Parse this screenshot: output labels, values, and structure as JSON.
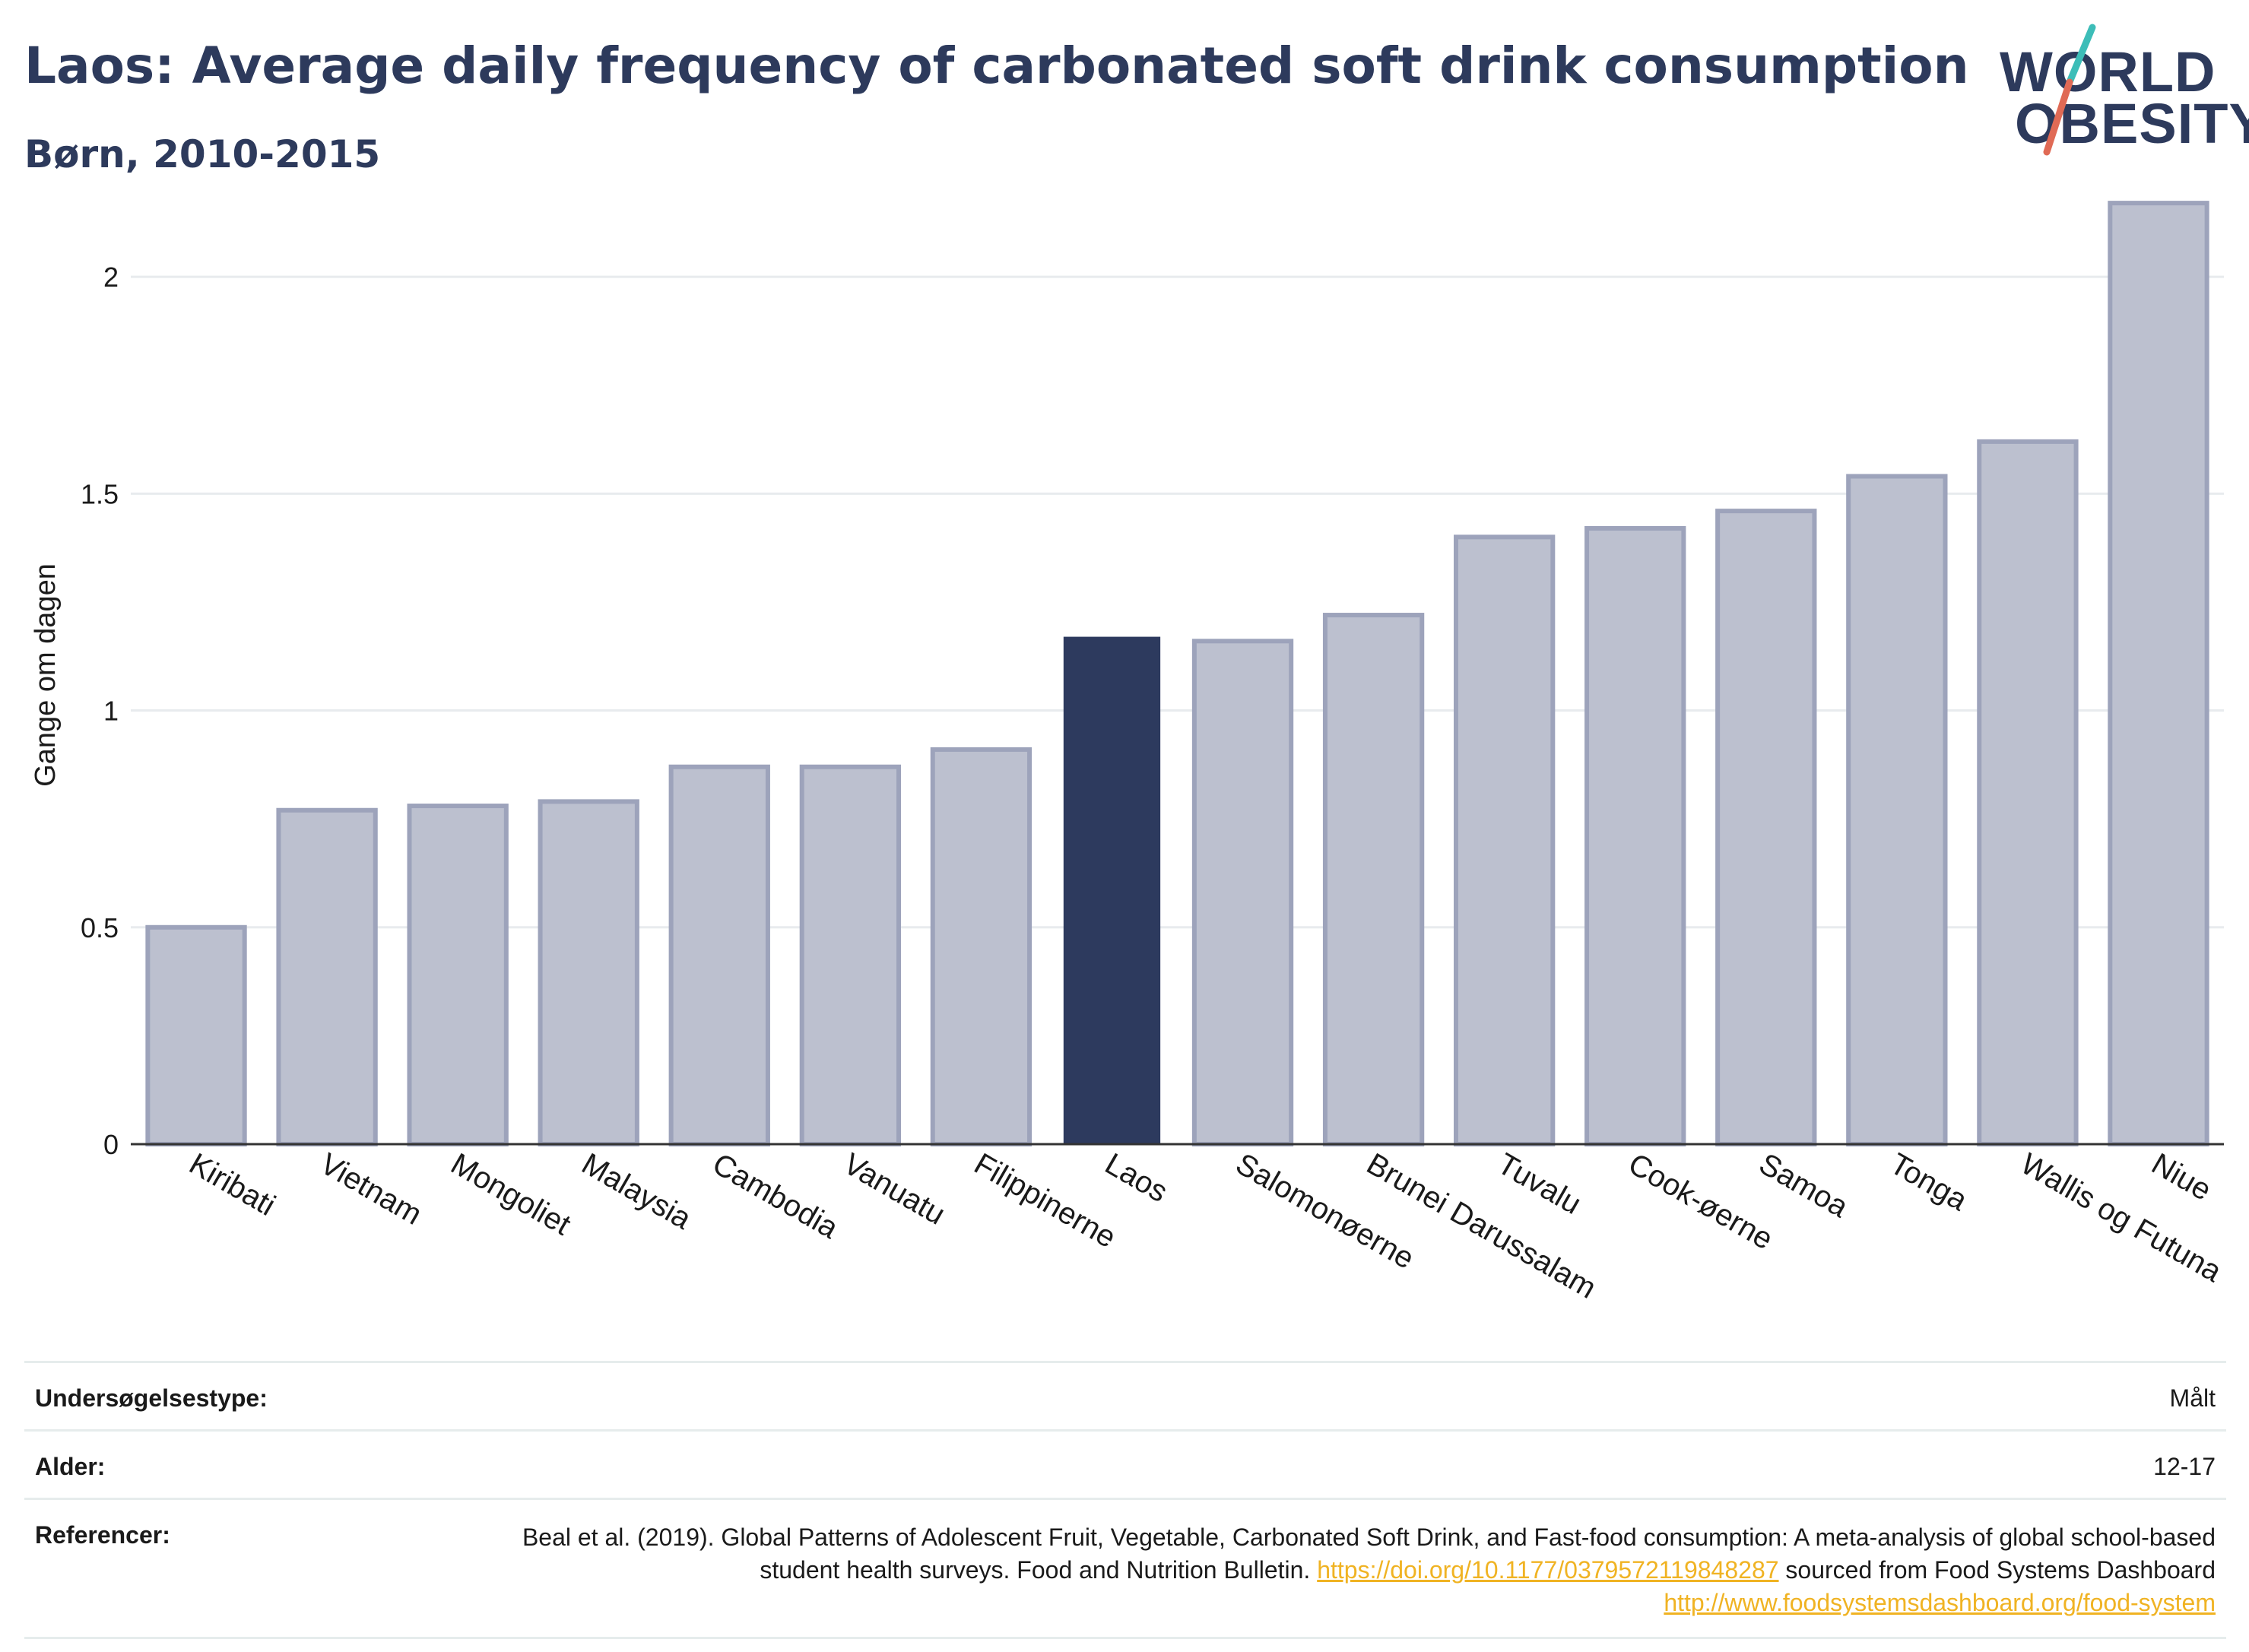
{
  "header": {
    "title": "Laos: Average daily frequency of carbonated soft drink consumption",
    "subtitle": "Børn, 2010-2015"
  },
  "logo": {
    "line1": "WORLD",
    "line2": "OBESITY",
    "slash_colors": [
      "#3dbdb8",
      "#e06a55"
    ]
  },
  "chart_data": {
    "type": "bar",
    "categories": [
      "Kiribati",
      "Vietnam",
      "Mongoliet",
      "Malaysia",
      "Cambodia",
      "Vanuatu",
      "Filippinerne",
      "Laos",
      "Salomonøerne",
      "Brunei Darussalam",
      "Tuvalu",
      "Cook-øerne",
      "Samoa",
      "Tonga",
      "Wallis og Futuna",
      "Niue"
    ],
    "values": [
      0.5,
      0.77,
      0.78,
      0.79,
      0.87,
      0.87,
      0.91,
      1.17,
      1.16,
      1.22,
      1.4,
      1.42,
      1.46,
      1.54,
      1.62,
      2.17
    ],
    "highlight": "Laos",
    "xlabel": "",
    "ylabel": "Gange om dagen",
    "ylim": [
      0,
      2.2
    ],
    "yticks": [
      0,
      0.5,
      1,
      1.5,
      2
    ],
    "ytick_labels": [
      "0",
      "0.5",
      "1",
      "1.5",
      "2"
    ],
    "grid": true,
    "colors": {
      "highlight": "#2d3a5e",
      "bar_fill": "#bcc0cf",
      "bar_outline": "#9da3bb",
      "grid": "#e8ebee",
      "axis": "#333333"
    }
  },
  "info": {
    "survey_type_label": "Undersøgelsestype:",
    "survey_type_value": "Målt",
    "age_label": "Alder:",
    "age_value": "12-17",
    "references_label": "Referencer:",
    "references_text": "Beal et al. (2019). Global Patterns of Adolescent Fruit, Vegetable, Carbonated Soft Drink, and Fast-food consumption: A meta-analysis of global school-based student health surveys. Food and Nutrition Bulletin.",
    "references_link1": "https://doi.org/10.1177/0379572119848287",
    "references_middle": "sourced from Food Systems Dashboard",
    "references_link2": "http://www.foodsystemsdashboard.org/food-system"
  }
}
